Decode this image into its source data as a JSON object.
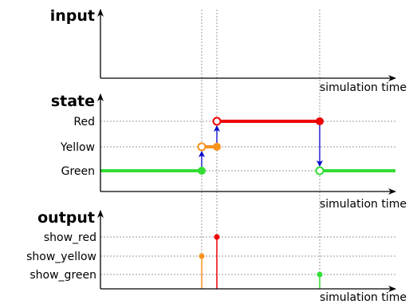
{
  "panels": {
    "input": {
      "title": "input",
      "axis_label": "simulation time"
    },
    "state": {
      "title": "state",
      "axis_label": "simulation time",
      "levels": [
        "Red",
        "Yellow",
        "Green"
      ]
    },
    "output": {
      "title": "output",
      "axis_label": "simulation time",
      "levels": [
        "show_red",
        "show_yellow",
        "show_green"
      ]
    }
  },
  "colors": {
    "red": "#ee0000",
    "yellow": "#f7931e",
    "green": "#33dd33",
    "transition": "#0000cc",
    "axis": "#000000",
    "grid": "#999999"
  }
}
